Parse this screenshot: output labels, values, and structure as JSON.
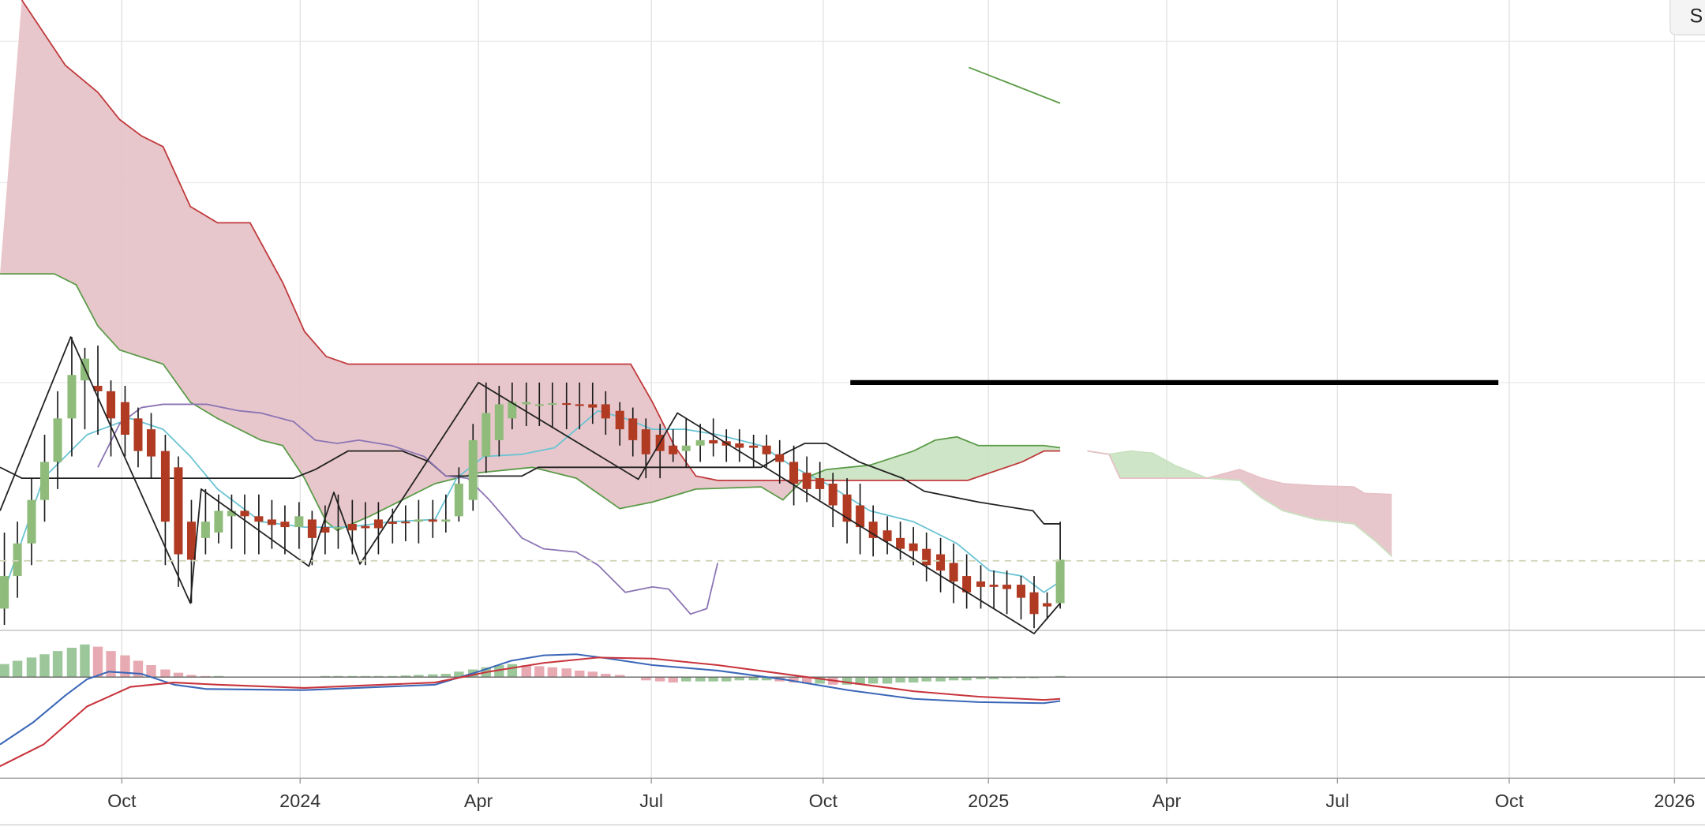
{
  "chart_data": {
    "type": "candlestick",
    "xlim": [
      0,
      1568
    ],
    "xticks": [
      {
        "value": 112,
        "label": "Oct"
      },
      {
        "value": 276,
        "label": "2024"
      },
      {
        "value": 440,
        "label": "Apr"
      },
      {
        "value": 599,
        "label": "Jul"
      },
      {
        "value": 757,
        "label": "Oct"
      },
      {
        "value": 909,
        "label": "2025"
      },
      {
        "value": 1073,
        "label": "Apr"
      },
      {
        "value": 1230,
        "label": "Jul"
      },
      {
        "value": 1388,
        "label": "Oct"
      },
      {
        "value": 1540,
        "label": "2026"
      }
    ],
    "ylim": [
      0,
      580
    ],
    "yticks": [
      228,
      412,
      542
    ],
    "grid": true,
    "up_color": "#8fbc7a",
    "down_color": "#b03a22",
    "x": [
      4,
      16,
      29,
      41,
      53,
      66,
      78,
      90,
      102,
      115,
      127,
      139,
      152,
      164,
      176,
      189,
      201,
      213,
      225,
      238,
      250,
      262,
      275,
      287,
      299,
      311,
      324,
      336,
      348,
      361,
      373,
      385,
      398,
      410,
      422,
      435,
      447,
      459,
      471,
      484,
      496,
      508,
      521,
      533,
      545,
      557,
      570,
      582,
      594,
      607,
      619,
      631,
      644,
      656,
      668,
      680,
      693,
      705,
      717,
      730,
      742,
      754,
      766,
      779,
      791,
      803,
      816,
      828,
      840,
      852,
      865,
      877,
      889,
      902,
      914,
      926,
      939,
      951,
      963,
      975
    ],
    "open": [
      20,
      50,
      80,
      120,
      155,
      195,
      230,
      225,
      220,
      210,
      195,
      185,
      165,
      150,
      100,
      85,
      90,
      105,
      110,
      105,
      102,
      100,
      95,
      102,
      95,
      95,
      98,
      96,
      102,
      100,
      100,
      100,
      102,
      100,
      105,
      120,
      160,
      175,
      195,
      208,
      208,
      208,
      209,
      208,
      208,
      208,
      202,
      195,
      185,
      180,
      170,
      165,
      170,
      175,
      174,
      172,
      170,
      170,
      162,
      155,
      145,
      140,
      135,
      125,
      115,
      100,
      92,
      85,
      80,
      75,
      70,
      62,
      50,
      45,
      42,
      42,
      42,
      35,
      25,
      25
    ],
    "high": [
      90,
      100,
      140,
      180,
      220,
      270,
      260,
      262,
      230,
      225,
      205,
      200,
      180,
      160,
      120,
      130,
      125,
      125,
      125,
      125,
      120,
      115,
      118,
      110,
      115,
      125,
      120,
      118,
      118,
      112,
      115,
      120,
      120,
      125,
      150,
      190,
      228,
      225,
      228,
      228,
      228,
      228,
      228,
      228,
      228,
      220,
      210,
      205,
      195,
      190,
      185,
      195,
      190,
      195,
      185,
      185,
      180,
      180,
      175,
      170,
      160,
      155,
      145,
      140,
      135,
      115,
      105,
      100,
      95,
      90,
      85,
      80,
      70,
      60,
      55,
      55,
      50,
      50,
      35,
      100
    ],
    "low": [
      5,
      30,
      60,
      100,
      130,
      160,
      185,
      180,
      160,
      160,
      150,
      140,
      60,
      40,
      25,
      70,
      80,
      75,
      70,
      70,
      75,
      70,
      75,
      60,
      70,
      75,
      70,
      60,
      70,
      80,
      82,
      80,
      85,
      90,
      100,
      110,
      145,
      160,
      185,
      188,
      188,
      186,
      185,
      185,
      190,
      180,
      170,
      160,
      140,
      140,
      155,
      150,
      155,
      160,
      155,
      155,
      150,
      150,
      135,
      115,
      118,
      120,
      95,
      80,
      70,
      68,
      70,
      65,
      60,
      45,
      35,
      25,
      20,
      20,
      20,
      15,
      10,
      2,
      10,
      20
    ],
    "close": [
      50,
      80,
      120,
      155,
      195,
      235,
      250,
      220,
      195,
      180,
      165,
      160,
      100,
      70,
      65,
      100,
      110,
      110,
      105,
      100,
      97,
      95,
      105,
      85,
      90,
      95,
      92,
      94,
      94,
      98,
      99,
      102,
      100,
      102,
      135,
      175,
      200,
      208,
      210,
      210,
      208,
      209,
      208,
      207,
      205,
      195,
      185,
      175,
      162,
      165,
      162,
      170,
      175,
      172,
      170,
      168,
      168,
      162,
      155,
      135,
      130,
      130,
      115,
      100,
      95,
      85,
      82,
      75,
      73,
      60,
      55,
      45,
      35,
      40,
      40,
      38,
      30,
      15,
      22,
      65
    ],
    "cloud": {
      "a": {
        "color": "#5b9b48",
        "x": [
          0,
          50,
          70,
          90,
          110,
          150,
          175,
          200,
          240,
          260,
          280,
          300,
          310,
          340,
          370,
          400,
          440,
          490,
          530,
          570,
          600,
          640,
          700,
          720,
          740,
          760,
          800,
          840,
          860,
          880,
          900,
          960,
          975
        ],
        "values": [
          328,
          328,
          318,
          280,
          258,
          245,
          210,
          195,
          175,
          170,
          140,
          100,
          92,
          105,
          120,
          135,
          145,
          150,
          140,
          112,
          118,
          130,
          132,
          120,
          140,
          148,
          152,
          165,
          175,
          178,
          170,
          170,
          168
        ]
      },
      "b": {
        "color": "#c0393b",
        "x": [
          20,
          40,
          60,
          90,
          110,
          130,
          150,
          175,
          200,
          230,
          260,
          280,
          300,
          320,
          580,
          600,
          620,
          640,
          660,
          890,
          940,
          960,
          975
        ],
        "values": [
          580,
          550,
          520,
          495,
          470,
          455,
          445,
          390,
          375,
          375,
          320,
          275,
          252,
          245,
          245,
          210,
          170,
          142,
          138,
          138,
          155,
          165,
          165
        ]
      },
      "up_fill": "#c9e2c1",
      "down_fill": "#e6c1c6"
    },
    "cloud_ahead": {
      "a": {
        "color": "#c9e2c1",
        "x": [
          1000,
          1020,
          1040,
          1060,
          1080,
          1110,
          1140,
          1160,
          1180,
          1210,
          1245,
          1265,
          1280
        ],
        "values": [
          165,
          162,
          165,
          163,
          152,
          140,
          138,
          122,
          110,
          102,
          98,
          82,
          68
        ]
      },
      "b": {
        "color": "#e6c1c6",
        "x": [
          1000,
          1020,
          1030,
          1110,
          1140,
          1160,
          1180,
          1210,
          1245,
          1255,
          1280
        ],
        "values": [
          165,
          162,
          140,
          140,
          148,
          140,
          135,
          133,
          132,
          126,
          125
        ]
      },
      "up_fill": "#c9e2c1",
      "down_fill": "#e6c1c6"
    },
    "lines": [
      {
        "color": "#6ac3d3",
        "width": 1.3,
        "x": [
          0,
          40,
          80,
          120,
          150,
          175,
          200,
          240,
          280,
          320,
          360,
          400,
          420,
          445,
          480,
          510,
          530,
          550,
          575,
          600,
          630,
          660,
          700,
          730,
          760,
          800,
          840,
          880,
          910,
          940,
          960,
          975
        ],
        "values": [
          25,
          140,
          180,
          195,
          185,
          160,
          130,
          100,
          95,
          95,
          100,
          102,
          140,
          160,
          162,
          168,
          185,
          202,
          195,
          185,
          185,
          180,
          170,
          150,
          135,
          110,
          100,
          80,
          55,
          50,
          35,
          45
        ]
      },
      {
        "color": "#222222",
        "width": 1.3,
        "x": [
          0,
          20,
          270,
          290,
          320,
          370,
          395,
          410,
          480,
          495,
          700,
          720,
          740,
          760,
          790,
          830,
          850,
          900,
          950,
          960,
          975
        ],
        "values": [
          150,
          140,
          140,
          148,
          165,
          165,
          155,
          142,
          142,
          150,
          150,
          162,
          172,
          172,
          155,
          140,
          128,
          118,
          110,
          98,
          98
        ]
      },
      {
        "color": "#8b74b3",
        "width": 1.3,
        "x": [
          90,
          110,
          130,
          150,
          190,
          220,
          240,
          270,
          290,
          310,
          330,
          360,
          390,
          410,
          430,
          450,
          480,
          500,
          530,
          550,
          575,
          600,
          615,
          635,
          650,
          660
        ],
        "values": [
          150,
          190,
          205,
          208,
          208,
          202,
          200,
          192,
          175,
          172,
          175,
          170,
          160,
          142,
          140,
          120,
          85,
          75,
          72,
          60,
          35,
          40,
          38,
          15,
          20,
          62
        ]
      },
      {
        "color": "#222222",
        "width": 1.3,
        "x": [
          0,
          65,
          175,
          185,
          284,
          307,
          331,
          440,
          587,
          623,
          951,
          975
        ],
        "values": [
          110,
          270,
          25,
          130,
          59,
          127,
          61,
          228,
          139,
          200,
          -3,
          25
        ]
      },
      {
        "color": "#000000",
        "width": 4.5,
        "x": [
          782,
          1378
        ],
        "values": [
          228,
          228
        ]
      },
      {
        "color": "#5a9a45",
        "width": 1.3,
        "x": [
          891,
          975
        ],
        "values": [
          518,
          485
        ]
      },
      {
        "color": "#cfd6b8",
        "width": 1.3,
        "dash": true,
        "x": [
          0,
          1568
        ],
        "values": [
          64,
          64
        ]
      }
    ],
    "macd": {
      "ylim": [
        -93,
        43
      ],
      "rising_color": "#9cc79a",
      "falling_color": "#e8aab2",
      "zero_color": "#666666",
      "values": [
        12,
        15,
        18,
        21,
        24,
        27,
        30,
        28,
        24,
        20,
        15,
        11,
        7,
        4,
        2,
        1,
        1,
        0.5,
        0.5,
        0.5,
        0.5,
        0.5,
        0.5,
        0.5,
        1,
        1,
        1,
        1,
        1,
        1,
        1.5,
        2,
        2.5,
        3,
        5,
        7,
        9,
        11,
        12,
        11,
        10,
        9,
        8,
        6,
        5,
        3,
        2,
        0.5,
        -3,
        -4,
        -5,
        -4,
        -4,
        -4,
        -4,
        -3,
        -3,
        -3,
        -4,
        -5,
        -6,
        -6,
        -7,
        -7,
        -7,
        -6,
        -6,
        -5,
        -5,
        -4,
        -4,
        -3,
        -3,
        -2,
        -2,
        -1,
        -1,
        -1,
        -0.5,
        1
      ],
      "lines": [
        {
          "color": "#3b67b8",
          "width": 1.5,
          "x": [
            0,
            30,
            60,
            80,
            100,
            130,
            160,
            190,
            280,
            400,
            440,
            470,
            500,
            530,
            560,
            600,
            660,
            720,
            780,
            840,
            900,
            960,
            975
          ],
          "values": [
            -62,
            -42,
            -17,
            -2,
            5,
            3,
            -7,
            -11,
            -12,
            -7,
            5,
            15,
            20,
            21,
            17,
            11,
            6,
            -2,
            -12,
            -20,
            -23,
            -24,
            -22
          ]
        },
        {
          "color": "#c8343c",
          "width": 1.5,
          "x": [
            0,
            40,
            80,
            120,
            160,
            200,
            280,
            400,
            450,
            500,
            550,
            600,
            660,
            720,
            780,
            840,
            900,
            960,
            975
          ],
          "values": [
            -82,
            -62,
            -27,
            -9,
            -5,
            -7,
            -10,
            -5,
            5,
            13,
            18,
            17,
            11,
            3,
            -5,
            -13,
            -18,
            -21,
            -20
          ]
        }
      ]
    },
    "button_label": "S"
  }
}
